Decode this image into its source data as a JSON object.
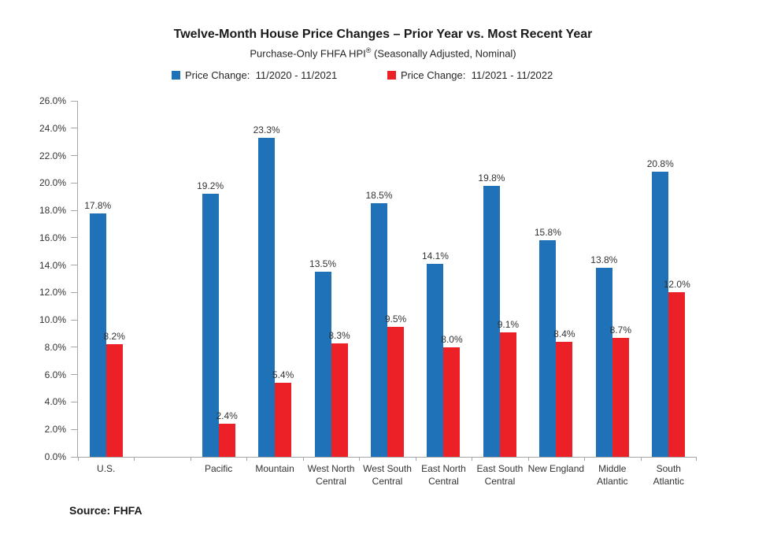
{
  "chart_data": {
    "type": "bar",
    "title": "Twelve-Month House Price Changes – Prior Year vs. Most Recent Year",
    "subtitle": "Purchase-Only FHFA HPI® (Seasonally Adjusted, Nominal)",
    "subtitle_parts": {
      "pre": "Purchase-Only FHFA HPI",
      "sup": "®",
      "post": " (Seasonally Adjusted, Nominal)"
    },
    "categories": [
      "U.S.",
      "Pacific",
      "Mountain",
      "West North Central",
      "West South Central",
      "East North Central",
      "East South Central",
      "New England",
      "Middle Atlantic",
      "South Atlantic"
    ],
    "x_tick_label_lines": [
      [
        "U.S."
      ],
      [
        "Pacific"
      ],
      [
        "Mountain"
      ],
      [
        "West North",
        "Central"
      ],
      [
        "West South",
        "Central"
      ],
      [
        "East North",
        "Central"
      ],
      [
        "East South",
        "Central"
      ],
      [
        "New England"
      ],
      [
        "Middle",
        "Atlantic"
      ],
      [
        "South",
        "Atlantic"
      ]
    ],
    "series": [
      {
        "name": "Price Change:  11/2020 - 11/2021",
        "color": "#1f72b8",
        "values": [
          17.8,
          19.2,
          23.3,
          13.5,
          18.5,
          14.1,
          19.8,
          15.8,
          13.8,
          20.8
        ]
      },
      {
        "name": "Price Change:  11/2021 - 11/2022",
        "color": "#ec2027",
        "values": [
          8.2,
          2.4,
          5.4,
          8.3,
          9.5,
          8.0,
          9.1,
          8.4,
          8.7,
          12.0
        ]
      }
    ],
    "y_axis": {
      "min": 0,
      "max": 26,
      "step": 2,
      "tick_labels": [
        "0.0%",
        "2.0%",
        "4.0%",
        "6.0%",
        "8.0%",
        "10.0%",
        "12.0%",
        "14.0%",
        "16.0%",
        "18.0%",
        "20.0%",
        "22.0%",
        "24.0%",
        "26.0%"
      ]
    },
    "gap_after_first_category": true,
    "grid": false,
    "legend_position": "top",
    "axis_color": "#a6a6a6"
  },
  "source": {
    "label": "Source: FHFA"
  }
}
